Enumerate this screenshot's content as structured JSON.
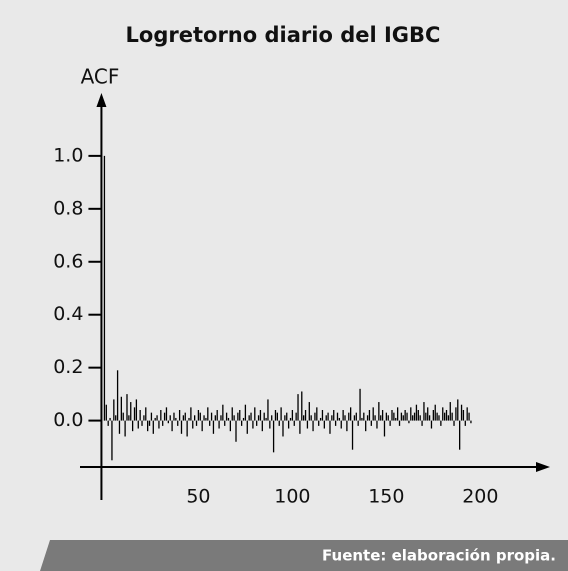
{
  "chart_data": {
    "type": "stem",
    "title": "Logretorno diario del IGBC",
    "y_label": "ACF",
    "source": "Fuente: elaboración propia.",
    "color": "#000000",
    "x": [
      0,
      1,
      2,
      3,
      4,
      5,
      6,
      7,
      8,
      9,
      10,
      11,
      12,
      13,
      14,
      15,
      16,
      17,
      18,
      19,
      20,
      21,
      22,
      23,
      24,
      25,
      26,
      27,
      28,
      29,
      30,
      31,
      32,
      33,
      34,
      35,
      36,
      37,
      38,
      39,
      40,
      41,
      42,
      43,
      44,
      45,
      46,
      47,
      48,
      49,
      50,
      51,
      52,
      53,
      54,
      55,
      56,
      57,
      58,
      59,
      60,
      61,
      62,
      63,
      64,
      65,
      66,
      67,
      68,
      69,
      70,
      71,
      72,
      73,
      74,
      75,
      76,
      77,
      78,
      79,
      80,
      81,
      82,
      83,
      84,
      85,
      86,
      87,
      88,
      89,
      90,
      91,
      92,
      93,
      94,
      95,
      96,
      97,
      98,
      99,
      100,
      101,
      102,
      103,
      104,
      105,
      106,
      107,
      108,
      109,
      110,
      111,
      112,
      113,
      114,
      115,
      116,
      117,
      118,
      119,
      120,
      121,
      122,
      123,
      124,
      125,
      126,
      127,
      128,
      129,
      130,
      131,
      132,
      133,
      134,
      135,
      136,
      137,
      138,
      139,
      140,
      141,
      142,
      143,
      144,
      145,
      146,
      147,
      148,
      149,
      150,
      151,
      152,
      153,
      154,
      155,
      156,
      157,
      158,
      159,
      160,
      161,
      162,
      163,
      164,
      165,
      166,
      167,
      168,
      169,
      170,
      171,
      172,
      173,
      174,
      175,
      176,
      177,
      178,
      179,
      180,
      181,
      182,
      183,
      184,
      185,
      186,
      187,
      188,
      189,
      190,
      191,
      192,
      193,
      194,
      195
    ],
    "values": [
      1.0,
      0.06,
      -0.02,
      0.01,
      -0.15,
      0.08,
      0.02,
      0.19,
      -0.05,
      0.09,
      0.03,
      -0.06,
      0.1,
      0.02,
      0.07,
      -0.04,
      0.05,
      0.08,
      -0.03,
      0.04,
      -0.02,
      0.02,
      0.05,
      -0.04,
      -0.02,
      0.03,
      -0.05,
      0.01,
      0.02,
      -0.03,
      0.04,
      -0.02,
      0.03,
      0.05,
      -0.01,
      0.02,
      -0.04,
      0.03,
      0.01,
      -0.02,
      0.04,
      -0.05,
      0.02,
      0.03,
      -0.06,
      0.01,
      0.05,
      -0.03,
      0.02,
      -0.02,
      0.04,
      0.03,
      -0.04,
      0.02,
      0.01,
      0.05,
      -0.02,
      0.03,
      -0.05,
      0.02,
      0.04,
      -0.03,
      0.02,
      0.06,
      -0.02,
      0.03,
      0.01,
      -0.04,
      0.05,
      0.02,
      -0.08,
      0.03,
      0.04,
      -0.02,
      0.01,
      0.06,
      -0.05,
      0.02,
      0.03,
      -0.03,
      0.05,
      -0.02,
      0.02,
      0.04,
      -0.04,
      0.03,
      0.01,
      0.08,
      -0.03,
      0.02,
      -0.12,
      0.04,
      0.03,
      -0.02,
      0.05,
      -0.06,
      0.02,
      0.03,
      -0.03,
      0.01,
      0.04,
      -0.02,
      0.03,
      0.1,
      -0.05,
      0.11,
      0.02,
      0.04,
      -0.03,
      0.07,
      0.02,
      -0.04,
      0.03,
      0.05,
      -0.02,
      0.01,
      0.04,
      -0.03,
      0.02,
      0.03,
      -0.05,
      0.02,
      0.04,
      -0.02,
      0.03,
      0.01,
      -0.03,
      0.04,
      0.02,
      -0.04,
      0.03,
      0.05,
      -0.11,
      0.02,
      0.03,
      -0.02,
      0.12,
      0.01,
      0.03,
      -0.04,
      0.02,
      0.04,
      -0.02,
      0.05,
      0.02,
      -0.03,
      0.07,
      0.02,
      0.04,
      -0.06,
      0.03,
      0.02,
      -0.02,
      0.04,
      0.03,
      0.01,
      0.05,
      -0.02,
      0.03,
      0.02,
      0.04,
      0.03,
      -0.01,
      0.05,
      0.02,
      0.03,
      0.06,
      0.04,
      0.02,
      -0.02,
      0.07,
      0.03,
      0.05,
      0.02,
      -0.03,
      0.04,
      0.06,
      0.03,
      0.02,
      -0.02,
      0.05,
      0.03,
      0.04,
      0.02,
      0.07,
      0.03,
      -0.02,
      0.05,
      0.08,
      -0.11,
      0.06,
      0.04,
      -0.02,
      0.05,
      0.03,
      -0.01
    ],
    "xlim": [
      -13,
      236
    ],
    "ylim": [
      -0.3,
      1.23
    ],
    "xticks": [
      50,
      100,
      150,
      200
    ],
    "yticks": [
      {
        "value": 0,
        "label": "0.0"
      },
      {
        "value": 0.2,
        "label": "0.2"
      },
      {
        "value": 0.4,
        "label": "0.4"
      },
      {
        "value": 0.6,
        "label": "0.6"
      },
      {
        "value": 0.8,
        "label": "0.8"
      },
      {
        "value": 1,
        "label": "1.0"
      }
    ]
  }
}
